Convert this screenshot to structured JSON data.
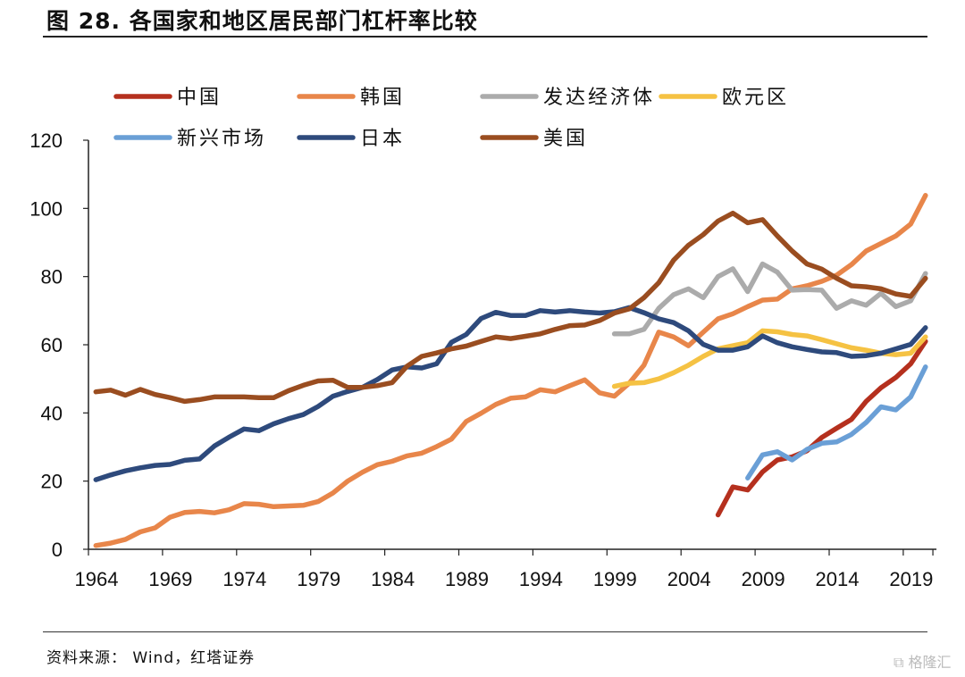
{
  "title": "图 28. 各国家和地区居民部门杠杆率比较",
  "source": "资料来源： Wind，红塔证券",
  "watermark": "格隆汇",
  "chart_data": {
    "type": "line",
    "title": "",
    "xlabel": "",
    "ylabel": "",
    "ylim": [
      0,
      120
    ],
    "yticks": [
      0,
      20,
      40,
      60,
      80,
      100,
      120
    ],
    "xticks": [
      "1964",
      "1969",
      "1974",
      "1979",
      "1984",
      "1989",
      "1994",
      "1999",
      "2004",
      "2009",
      "2014",
      "2019"
    ],
    "xrange": [
      1964,
      2020
    ],
    "grid": false,
    "legend_placement": "top",
    "series": [
      {
        "name": "中国",
        "color": "#B5301E",
        "start": 2006,
        "values": [
          10.1,
          18.3,
          17.4,
          22.7,
          26.2,
          27.1,
          28.9,
          32.8,
          35.5,
          38.1,
          43.4,
          47.4,
          50.4,
          54.4,
          61.0
        ]
      },
      {
        "name": "韩国",
        "color": "#E8864A",
        "start": 1964,
        "values": [
          1.1,
          1.8,
          2.9,
          5.1,
          6.3,
          9.4,
          10.8,
          11.1,
          10.7,
          11.6,
          13.4,
          13.2,
          12.5,
          12.7,
          12.9,
          14.0,
          16.5,
          20.0,
          22.6,
          24.8,
          25.8,
          27.4,
          28.2,
          30.1,
          32.3,
          37.5,
          39.9,
          42.5,
          44.3,
          44.7,
          46.8,
          46.2,
          48.0,
          49.7,
          45.9,
          44.9,
          48.7,
          54.0,
          63.7,
          62.3,
          59.7,
          63.7,
          67.6,
          69.1,
          71.2,
          73.1,
          73.4,
          76.4,
          77.3,
          78.6,
          80.4,
          83.5,
          87.5,
          89.7,
          91.9,
          95.4,
          103.8
        ]
      },
      {
        "name": "发达经济体",
        "color": "#ABABAB",
        "start": 1999,
        "values": [
          63.2,
          63.2,
          64.5,
          70.7,
          74.7,
          76.4,
          73.8,
          80.0,
          82.3,
          75.6,
          83.7,
          81.3,
          76.0,
          76.2,
          76.0,
          70.7,
          72.9,
          71.6,
          75.1,
          71.2,
          72.9,
          80.9
        ]
      },
      {
        "name": "欧元区",
        "color": "#F5C243",
        "start": 1999,
        "values": [
          47.8,
          48.7,
          48.9,
          50.0,
          51.8,
          54.0,
          56.6,
          58.8,
          59.7,
          60.6,
          64.1,
          63.8,
          63.0,
          62.6,
          61.5,
          60.3,
          59.1,
          58.4,
          57.5,
          57.1,
          57.5,
          62.3
        ]
      },
      {
        "name": "新兴市场",
        "color": "#6A9FD6",
        "start": 2008,
        "values": [
          20.9,
          27.7,
          28.6,
          26.2,
          29.3,
          31.1,
          31.5,
          33.7,
          37.2,
          41.8,
          40.9,
          44.7,
          53.5
        ]
      },
      {
        "name": "日本",
        "color": "#2E4A7C",
        "start": 1964,
        "values": [
          20.4,
          21.8,
          23.0,
          23.9,
          24.6,
          24.9,
          26.1,
          26.5,
          30.3,
          32.9,
          35.3,
          34.8,
          36.8,
          38.3,
          39.5,
          41.9,
          44.9,
          46.3,
          47.5,
          49.8,
          52.6,
          53.5,
          53.2,
          54.4,
          60.7,
          63.0,
          67.7,
          69.5,
          68.6,
          68.6,
          70.0,
          69.6,
          70.0,
          69.6,
          69.3,
          69.7,
          70.9,
          69.4,
          67.6,
          66.5,
          64.1,
          60.1,
          58.4,
          58.4,
          59.4,
          62.6,
          60.6,
          59.4,
          58.6,
          57.9,
          57.7,
          56.6,
          56.8,
          57.5,
          58.8,
          60.1,
          65.0
        ]
      },
      {
        "name": "美国",
        "color": "#9A4D20",
        "start": 1964,
        "values": [
          46.2,
          46.7,
          45.2,
          46.9,
          45.4,
          44.5,
          43.4,
          43.9,
          44.7,
          44.7,
          44.7,
          44.5,
          44.5,
          46.5,
          48.1,
          49.4,
          49.6,
          47.5,
          47.5,
          48.0,
          48.9,
          53.7,
          56.6,
          57.6,
          58.8,
          59.6,
          61.0,
          62.3,
          61.8,
          62.5,
          63.2,
          64.5,
          65.6,
          65.8,
          67.1,
          69.3,
          70.5,
          73.8,
          78.2,
          84.8,
          89.2,
          92.3,
          96.3,
          98.6,
          95.8,
          96.7,
          91.9,
          87.5,
          83.7,
          82.2,
          79.5,
          77.3,
          77.0,
          76.4,
          74.9,
          74.2,
          79.5
        ]
      }
    ]
  }
}
